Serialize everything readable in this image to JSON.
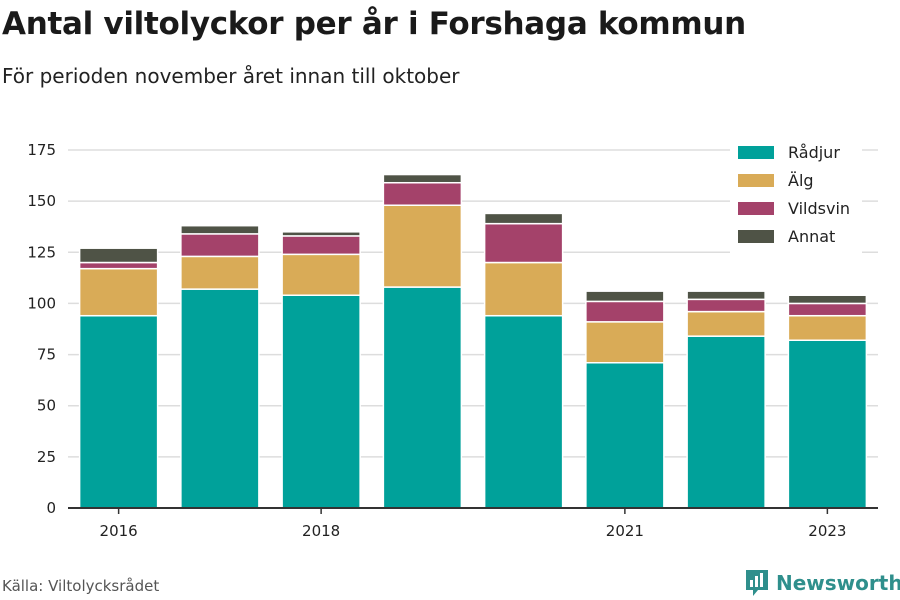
{
  "header": {
    "title": "Antal viltolyckor per år i Forshaga kommun",
    "subtitle": "För perioden november året innan till oktober"
  },
  "footer": {
    "source": "Källa: Viltolycksrådet",
    "brand": "Newsworthy",
    "brand_icon": "bar-chart-logo-icon"
  },
  "chart_data": {
    "type": "bar",
    "stacked": true,
    "title": "Antal viltolyckor per år i Forshaga kommun",
    "subtitle": "För perioden november året innan till oktober",
    "categories": [
      "2016",
      "2017",
      "2018",
      "2019",
      "2020",
      "2021",
      "2022",
      "2023"
    ],
    "x_tick_labels": [
      "2016",
      "",
      "2018",
      "",
      "",
      "2021",
      "",
      "2023"
    ],
    "y_ticks": [
      0,
      25,
      50,
      75,
      100,
      125,
      150,
      175
    ],
    "ylim": [
      0,
      180
    ],
    "grid": true,
    "legend_position": "top-right",
    "series": [
      {
        "name": "Rådjur",
        "color": "#00a19a",
        "values": [
          94,
          107,
          104,
          108,
          94,
          71,
          84,
          82
        ]
      },
      {
        "name": "Älg",
        "color": "#d9ab57",
        "values": [
          23,
          16,
          20,
          40,
          26,
          20,
          12,
          12
        ]
      },
      {
        "name": "Vildsvin",
        "color": "#a4426a",
        "values": [
          3,
          11,
          9,
          11,
          19,
          10,
          6,
          6
        ]
      },
      {
        "name": "Annat",
        "color": "#4f5346",
        "values": [
          7,
          4,
          2,
          4,
          5,
          5,
          4,
          4
        ]
      }
    ]
  }
}
